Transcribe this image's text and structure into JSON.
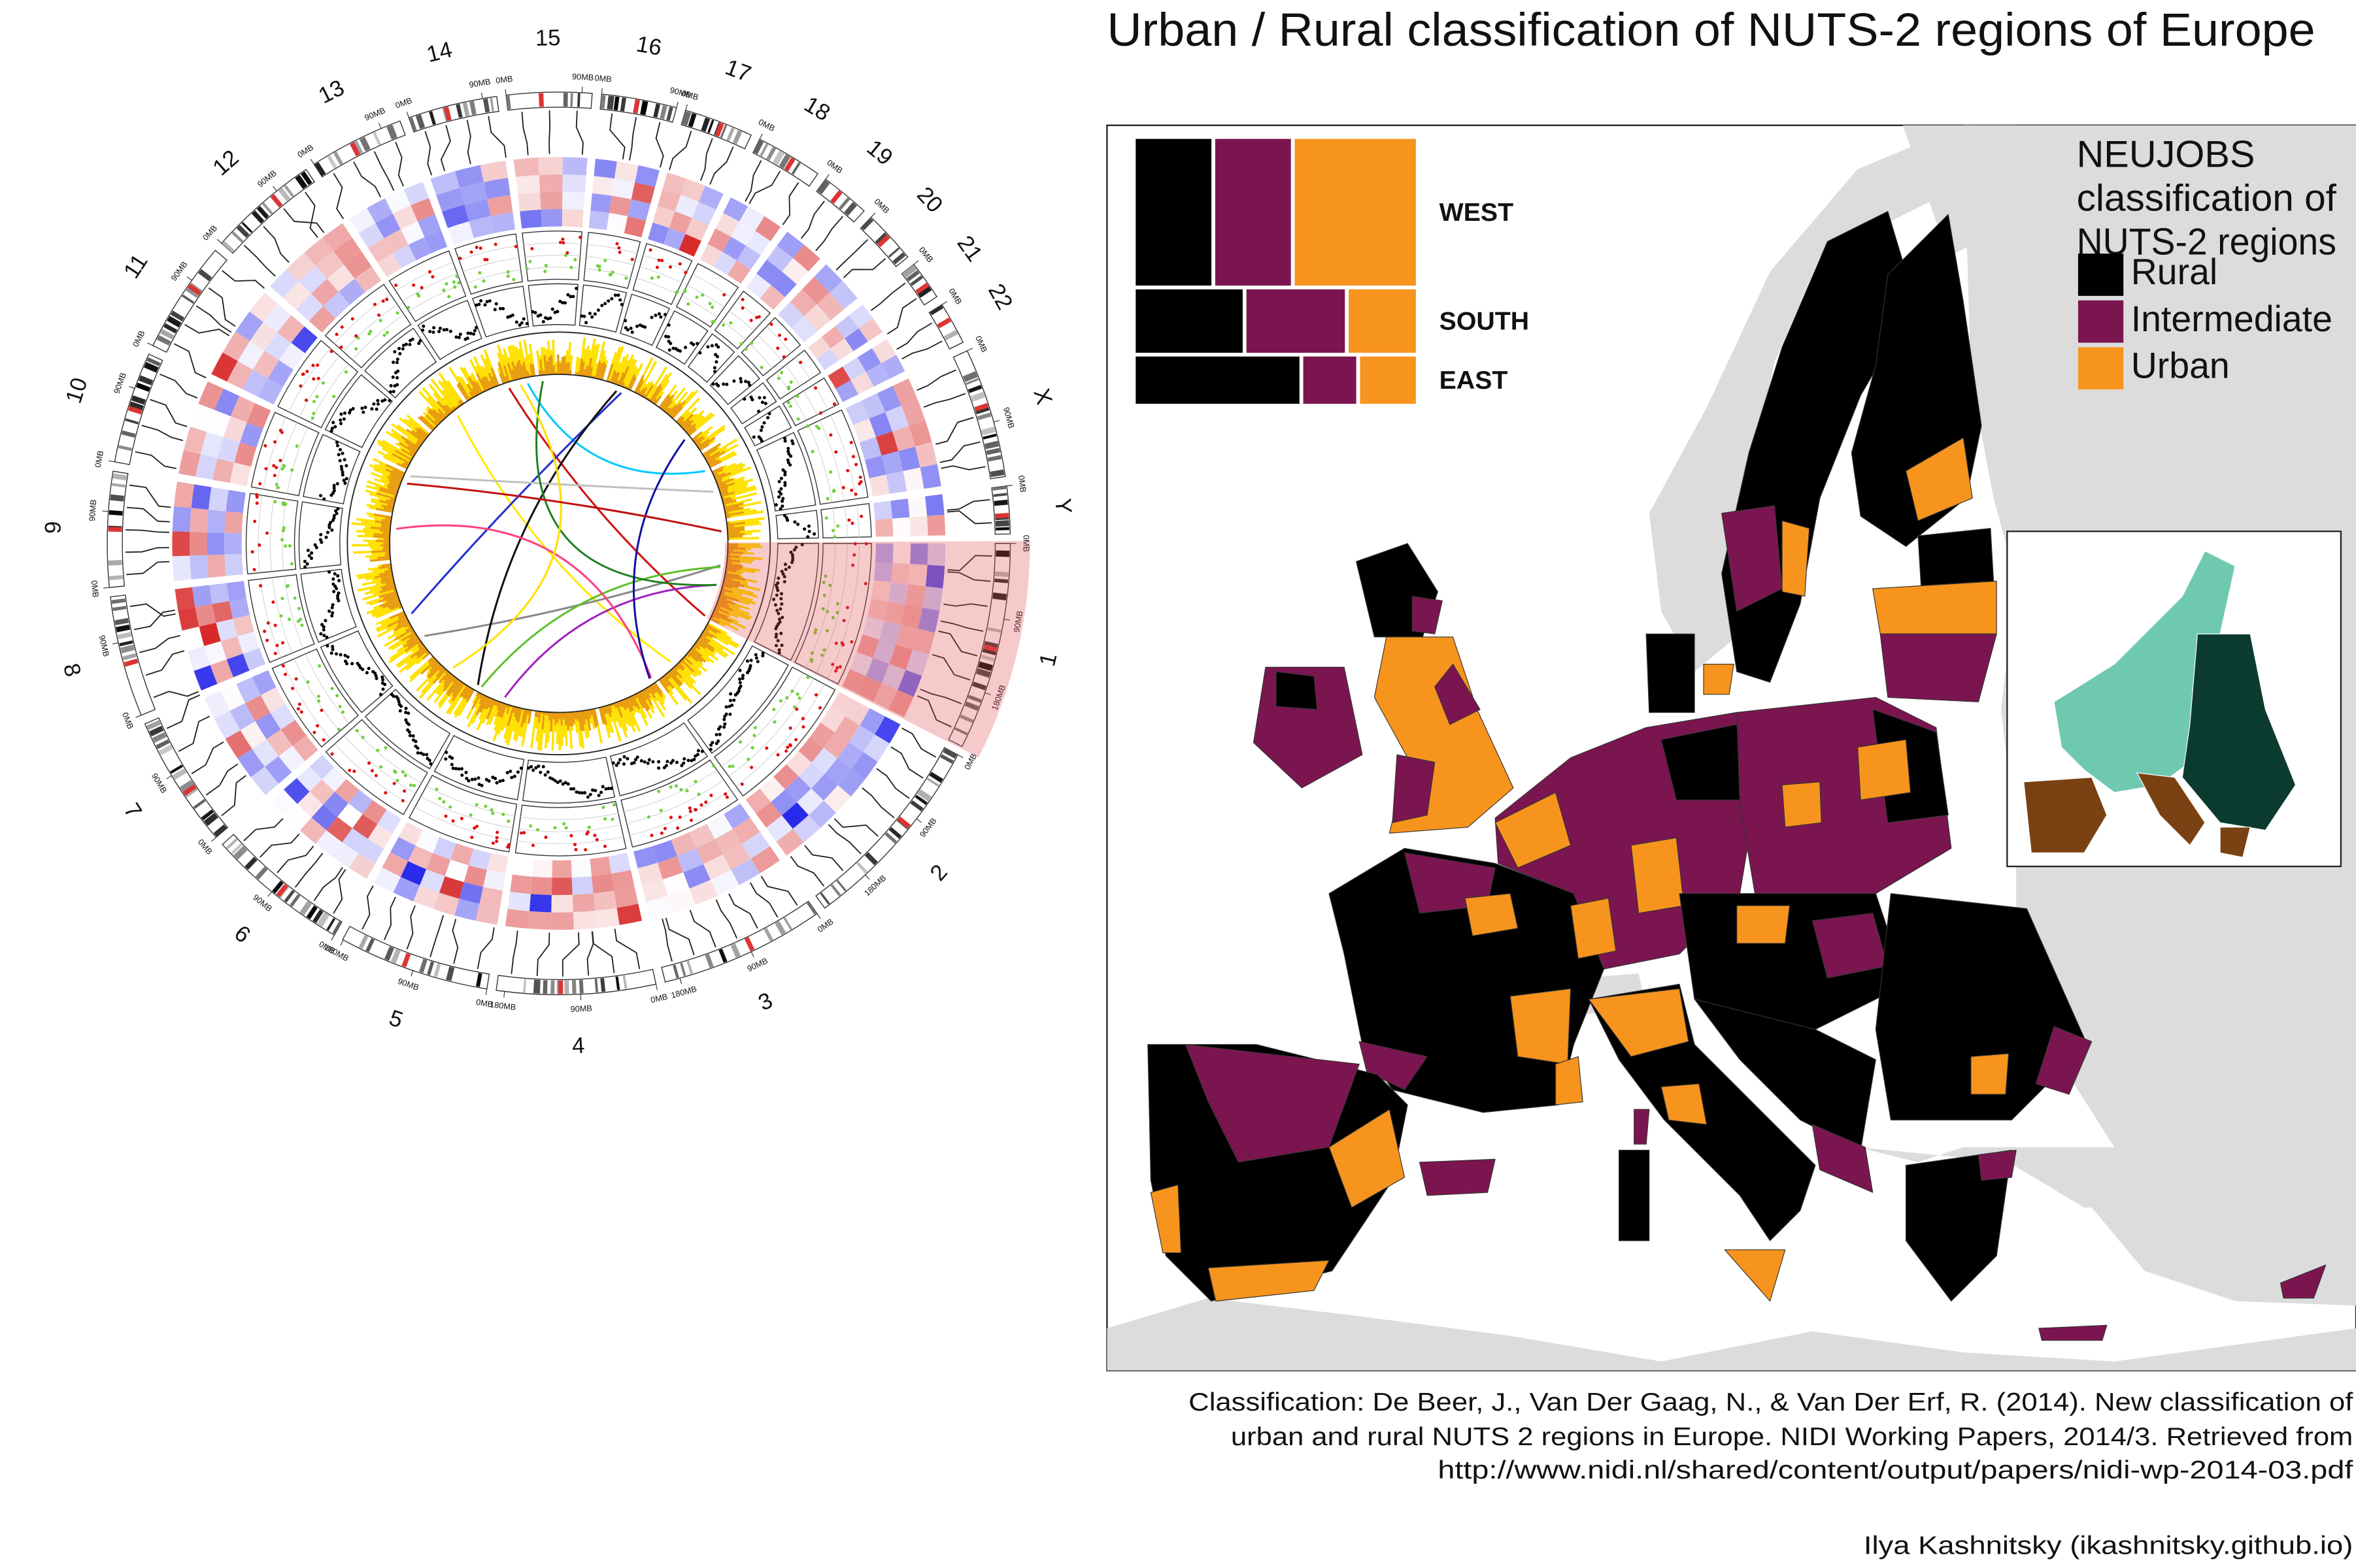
{
  "circos": {
    "chromosomes": [
      "1",
      "2",
      "3",
      "4",
      "5",
      "6",
      "7",
      "8",
      "9",
      "10",
      "11",
      "12",
      "13",
      "14",
      "15",
      "16",
      "17",
      "18",
      "19",
      "20",
      "21",
      "22",
      "X",
      "Y"
    ],
    "tick_labels": [
      "0MB",
      "90MB",
      "180MB"
    ]
  },
  "map": {
    "title": "Urban / Rural classification of NUTS-2 regions of Europe",
    "legend_title": [
      "NEUJOBS",
      "classification of",
      "NUTS-2 regions"
    ],
    "caption": [
      "Classification: De Beer, J., Van Der Gaag, N., & Van Der Erf, R. (2014). New classification of",
      "urban and rural NUTS 2 regions in Europe. NIDI Working Papers, 2014/3. Retrieved from",
      "http://www.nidi.nl/shared/content/output/papers/nidi-wp-2014-03.pdf"
    ],
    "author": "Ilya Kashnitsky (ikashnitsky.github.io)"
  },
  "chart_data": {
    "type": "mosaic",
    "categories": [
      "WEST",
      "SOUTH",
      "EAST"
    ],
    "row_values": [
      0.56,
      0.25,
      0.19
    ],
    "series": [
      {
        "name": "Rural",
        "color": "#000000",
        "values": [
          0.28,
          0.39,
          0.59
        ]
      },
      {
        "name": "Intermediate",
        "color": "#7b1550",
        "values": [
          0.28,
          0.36,
          0.2
        ]
      },
      {
        "name": "Urban",
        "color": "#f7941d",
        "values": [
          0.44,
          0.25,
          0.21
        ]
      }
    ]
  }
}
